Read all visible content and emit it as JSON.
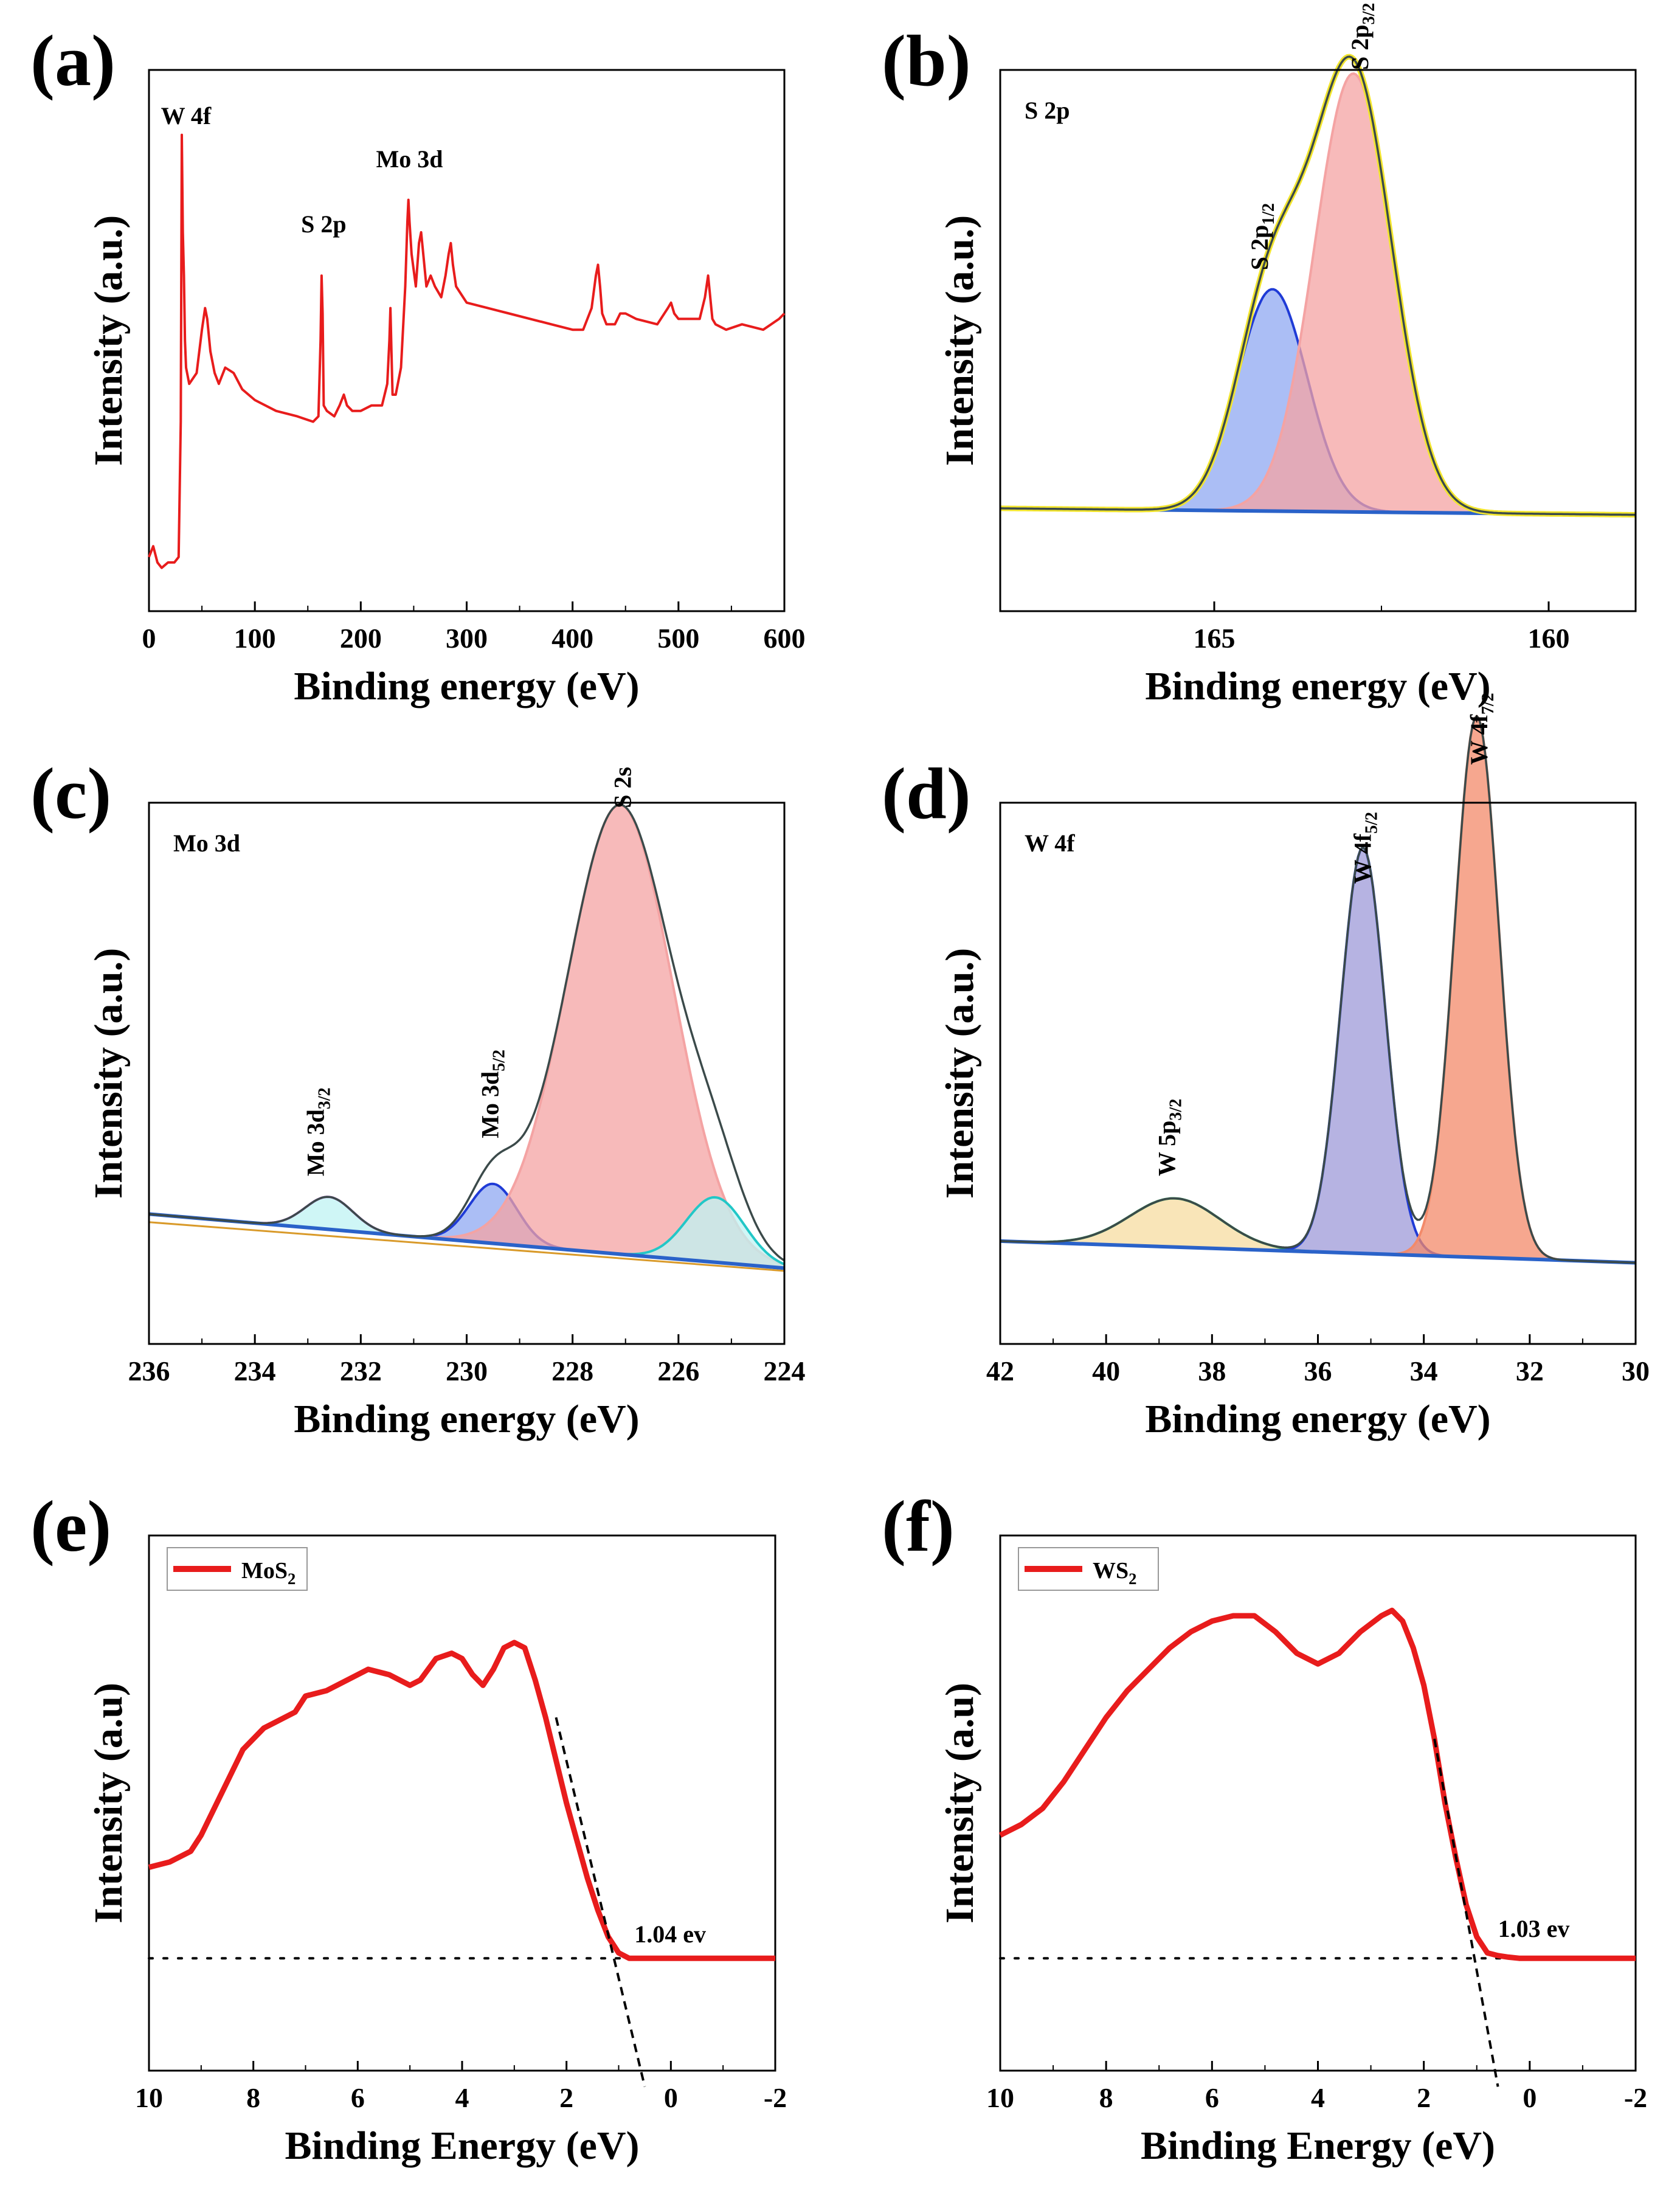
{
  "panel_letters": [
    "(a)",
    "(b)",
    "(c)",
    "(d)",
    "(e)",
    "(f)"
  ],
  "colors": {
    "survey": "#e81c1c",
    "envelope_yellow": "#f2e52e",
    "background": "#2a62c9",
    "blue_fill": "#8fa8f2",
    "blue_line": "#1f3bd6",
    "red_fill": "#f4a3a3",
    "cyan_fill": "#bff3f3",
    "cyan_line": "#22c7c7",
    "violet_line": "#c66de0",
    "orange_fill": "#f38a6a",
    "gold_fill": "#f7dca0",
    "green_line": "#1e9c4d",
    "slate_fill": "#9e99d8",
    "dark_line": "#3b4a4a"
  },
  "chart_data": [
    {
      "id": "a",
      "type": "line",
      "title": "",
      "xlabel": "Binding energy (eV)",
      "ylabel": "Intensity (a.u.)",
      "xlim": [
        0,
        600
      ],
      "ylim": [
        0,
        100
      ],
      "xticks": [
        "0",
        "100",
        "200",
        "300",
        "400",
        "500",
        "600"
      ],
      "series": [
        {
          "name": "survey",
          "x": [
            0,
            4,
            8,
            12,
            18,
            24,
            28,
            30,
            31,
            32,
            33,
            34,
            35,
            38,
            45,
            50,
            53,
            55,
            58,
            62,
            66,
            72,
            80,
            88,
            100,
            120,
            140,
            155,
            160,
            162,
            163,
            164,
            165,
            168,
            175,
            180,
            184,
            187,
            192,
            200,
            210,
            220,
            225,
            227,
            228,
            229,
            230,
            233,
            238,
            242,
            244,
            245,
            246,
            248,
            252,
            255,
            257,
            259,
            262,
            266,
            270,
            276,
            280,
            283,
            285,
            287,
            290,
            300,
            320,
            340,
            360,
            380,
            400,
            410,
            418,
            422,
            424,
            426,
            428,
            432,
            440,
            445,
            450,
            460,
            480,
            490,
            493,
            496,
            500,
            510,
            520,
            525,
            528,
            530,
            532,
            535,
            545,
            560,
            580,
            595,
            600
          ],
          "y": [
            10,
            12,
            9,
            8,
            9,
            9,
            10,
            35,
            88,
            70,
            62,
            50,
            45,
            42,
            44,
            52,
            56,
            54,
            48,
            44,
            42,
            45,
            44,
            41,
            39,
            37,
            36,
            35,
            36,
            50,
            62,
            55,
            38,
            37,
            36,
            38,
            40,
            38,
            37,
            37,
            38,
            38,
            42,
            50,
            56,
            48,
            40,
            40,
            45,
            60,
            72,
            76,
            72,
            66,
            60,
            68,
            70,
            66,
            60,
            62,
            60,
            58,
            62,
            66,
            68,
            64,
            60,
            57,
            56,
            55,
            54,
            53,
            52,
            52,
            56,
            62,
            64,
            60,
            55,
            53,
            53,
            55,
            55,
            54,
            53,
            56,
            57,
            55,
            54,
            54,
            54,
            58,
            62,
            58,
            54,
            53,
            52,
            53,
            52,
            54,
            55
          ]
        }
      ],
      "annotations": [
        {
          "text": "W 4f",
          "x": 35,
          "y": 90
        },
        {
          "text": "S 2p",
          "x": 165,
          "y": 70
        },
        {
          "text": "Mo 3d",
          "x": 246,
          "y": 82
        }
      ]
    },
    {
      "id": "b",
      "type": "area",
      "title": "S 2p",
      "xlabel": "Binding energy (eV)",
      "ylabel": "Intensity (a.u.)",
      "xlim": [
        168.2,
        158.7
      ],
      "ylim": [
        0,
        100
      ],
      "xticks": [
        "165",
        "160"
      ],
      "background": {
        "x": [
          168.2,
          158.7
        ],
        "y": [
          19,
          17.8
        ]
      },
      "peaks": [
        {
          "name": "S 2p1/2",
          "center": 164.13,
          "height": 41,
          "sigma": 0.52,
          "fill": "blue_fill",
          "line": "blue_line"
        },
        {
          "name": "S 2p3/2",
          "center": 162.92,
          "height": 81,
          "sigma": 0.58,
          "fill": "red_fill",
          "line": "red_fill"
        }
      ],
      "annotations": [
        {
          "text": "S 2p",
          "sub": "1/2",
          "x": 164.2,
          "y": 63
        },
        {
          "text": "S 2p",
          "sub": "3/2",
          "x": 162.7,
          "y": 100
        }
      ]
    },
    {
      "id": "c",
      "type": "area",
      "title": "Mo 3d",
      "xlabel": "Binding energy (eV)",
      "ylabel": "Intensity (a.u.)",
      "xlim": [
        236,
        224
      ],
      "ylim": [
        0,
        100
      ],
      "xticks": [
        "236",
        "234",
        "232",
        "230",
        "228",
        "226",
        "224"
      ],
      "background": {
        "x": [
          236,
          224
        ],
        "y": [
          24,
          14
        ]
      },
      "peaks": [
        {
          "name": "Mo 3d3/2",
          "center": 232.6,
          "height": 6,
          "sigma": 0.45,
          "fill": "cyan_fill",
          "line": "violet_line"
        },
        {
          "name": "Mo 3d5/2",
          "center": 229.5,
          "height": 11,
          "sigma": 0.45,
          "fill": "blue_fill",
          "line": "blue_line"
        },
        {
          "name": "S 2s",
          "center": 227.1,
          "height": 83,
          "sigma": 1.0,
          "fill": "red_fill",
          "line": "red_fill"
        },
        {
          "name": "shoulder",
          "center": 225.3,
          "height": 12,
          "sigma": 0.55,
          "fill": "cyan_fill",
          "line": "cyan_line"
        }
      ],
      "annotations": [
        {
          "text": "Mo 3d",
          "sub": "3/2",
          "x": 232.7,
          "y": 31
        },
        {
          "text": "Mo 3d",
          "sub": "5/2",
          "x": 229.4,
          "y": 38
        },
        {
          "text": "S 2s",
          "x": 226.9,
          "y": 99
        }
      ]
    },
    {
      "id": "d",
      "type": "area",
      "title": "W 4f",
      "xlabel": "Binding energy (eV)",
      "ylabel": "Intensity (a.u.)",
      "xlim": [
        42,
        30
      ],
      "ylim": [
        0,
        100
      ],
      "xticks": [
        "42",
        "40",
        "38",
        "36",
        "34",
        "32",
        "30"
      ],
      "background": {
        "x": [
          42,
          30
        ],
        "y": [
          19,
          15
        ]
      },
      "peaks": [
        {
          "name": "W 5p3/2",
          "center": 38.7,
          "height": 9,
          "sigma": 0.85,
          "fill": "gold_fill",
          "line": "green_line"
        },
        {
          "name": "W 4f5/2",
          "center": 35.15,
          "height": 75,
          "sigma": 0.42,
          "fill": "slate_fill",
          "line": "blue_line"
        },
        {
          "name": "W 4f7/2",
          "center": 33.0,
          "height": 100,
          "sigma": 0.42,
          "fill": "orange_fill",
          "line": "orange_fill"
        }
      ],
      "annotations": [
        {
          "text": "W 5p",
          "sub": "3/2",
          "x": 38.7,
          "y": 31
        },
        {
          "text": "W 4f",
          "sub": "5/2",
          "x": 35.0,
          "y": 85
        },
        {
          "text": "W 4f",
          "sub": "7/2",
          "x": 32.8,
          "y": 107
        }
      ]
    },
    {
      "id": "e",
      "type": "line",
      "title": "",
      "xlabel": "Binding Energy (eV)",
      "ylabel": "Intensity (a.u)",
      "xlim": [
        10,
        -2
      ],
      "ylim": [
        0,
        100
      ],
      "xticks": [
        "10",
        "8",
        "6",
        "4",
        "2",
        "0",
        "-2"
      ],
      "legend": [
        {
          "name": "MoS",
          "sub": "2"
        }
      ],
      "legend_position": "top-left",
      "series": [
        {
          "name": "MoS2",
          "x": [
            10,
            9.6,
            9.2,
            9.0,
            8.6,
            8.2,
            7.8,
            7.6,
            7.2,
            7.0,
            6.6,
            6.2,
            5.8,
            5.4,
            5.0,
            4.8,
            4.5,
            4.2,
            4.0,
            3.8,
            3.6,
            3.4,
            3.2,
            3.0,
            2.8,
            2.6,
            2.4,
            2.2,
            2.0,
            1.8,
            1.6,
            1.4,
            1.2,
            1.0,
            0.8,
            0.6,
            0.4,
            0.2,
            0,
            -0.5,
            -1,
            -1.5,
            -2
          ],
          "y": [
            38,
            39,
            41,
            44,
            52,
            60,
            64,
            65,
            67,
            70,
            71,
            73,
            75,
            74,
            72,
            73,
            77,
            78,
            77,
            74,
            72,
            75,
            79,
            80,
            79,
            73,
            66,
            58,
            50,
            43,
            36,
            30,
            25,
            22,
            21,
            21,
            21,
            21,
            21,
            21,
            21,
            21,
            21
          ]
        }
      ],
      "baseline_y": 21,
      "tangent": {
        "x": [
          2.2,
          0.5
        ],
        "y": [
          66,
          -3
        ]
      },
      "band_edge_label": "1.04 ev",
      "band_edge_label_pos": {
        "x": 0.7,
        "y": 24
      }
    },
    {
      "id": "f",
      "type": "line",
      "title": "",
      "xlabel": "Binding Energy (eV)",
      "ylabel": "Intensity (a.u)",
      "xlim": [
        10,
        -2
      ],
      "ylim": [
        0,
        100
      ],
      "xticks": [
        "10",
        "8",
        "6",
        "4",
        "2",
        "0",
        "-2"
      ],
      "legend": [
        {
          "name": "WS",
          "sub": "2"
        }
      ],
      "legend_position": "top-left",
      "series": [
        {
          "name": "WS2",
          "x": [
            10,
            9.6,
            9.2,
            8.8,
            8.4,
            8.0,
            7.6,
            7.2,
            6.8,
            6.4,
            6.0,
            5.6,
            5.2,
            4.8,
            4.4,
            4.0,
            3.6,
            3.2,
            2.8,
            2.6,
            2.4,
            2.2,
            2.0,
            1.8,
            1.6,
            1.4,
            1.2,
            1.0,
            0.8,
            0.6,
            0.4,
            0.2,
            0,
            -0.5,
            -1,
            -1.5,
            -2
          ],
          "y": [
            44,
            46,
            49,
            54,
            60,
            66,
            71,
            75,
            79,
            82,
            84,
            85,
            85,
            82,
            78,
            76,
            78,
            82,
            85,
            86,
            84,
            79,
            72,
            62,
            50,
            40,
            31,
            25,
            22,
            21.5,
            21.2,
            21,
            21,
            21,
            21,
            21,
            21
          ]
        }
      ],
      "baseline_y": 21,
      "tangent": {
        "x": [
          1.8,
          0.6
        ],
        "y": [
          62,
          -3
        ]
      },
      "band_edge_label": "1.03 ev",
      "band_edge_label_pos": {
        "x": 0.6,
        "y": 25
      }
    }
  ]
}
